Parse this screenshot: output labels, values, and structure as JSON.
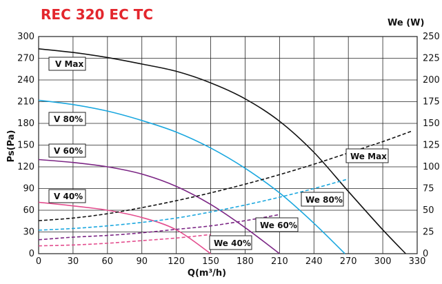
{
  "chart_data": {
    "type": "line",
    "title": "REC 320 EC TC",
    "xlabel": "Q(m³/h)",
    "ylabel": "Ps(Pa)",
    "y2label": "We (W)",
    "xlim": [
      0,
      330
    ],
    "ylim": [
      0,
      300
    ],
    "y2lim": [
      0,
      250
    ],
    "xticks": [
      "0",
      "30",
      "60",
      "90",
      "120",
      "150",
      "180",
      "210",
      "240",
      "270",
      "300",
      "330"
    ],
    "yticks": [
      "0",
      "30",
      "60",
      "90",
      "120",
      "150",
      "180",
      "210",
      "240",
      "270",
      "300"
    ],
    "y2ticks": [
      "0",
      "25",
      "50",
      "75",
      "100",
      "125",
      "150",
      "175",
      "200",
      "225",
      "250"
    ],
    "grid": true,
    "colors": {
      "max": "#111111",
      "v80": "#1aa7df",
      "v60": "#7b2584",
      "v40": "#e34d8e",
      "title": "#e3262d"
    },
    "series": [
      {
        "name": "V Max",
        "axis": "left",
        "style": "solid",
        "color": "#111111",
        "x": [
          0,
          30,
          60,
          90,
          120,
          150,
          180,
          210,
          240,
          270,
          300,
          320
        ],
        "y": [
          283,
          278,
          271,
          262,
          252,
          236,
          214,
          183,
          140,
          86,
          33,
          0
        ]
      },
      {
        "name": "V 80%",
        "axis": "left",
        "style": "solid",
        "color": "#1aa7df",
        "x": [
          0,
          30,
          60,
          90,
          120,
          150,
          180,
          210,
          240,
          267
        ],
        "y": [
          212,
          206,
          197,
          184,
          168,
          146,
          118,
          84,
          42,
          0
        ]
      },
      {
        "name": "V 60%",
        "axis": "left",
        "style": "solid",
        "color": "#7b2584",
        "x": [
          0,
          30,
          60,
          90,
          120,
          150,
          180,
          210
        ],
        "y": [
          130,
          126,
          120,
          110,
          93,
          68,
          36,
          0
        ]
      },
      {
        "name": "V 40%",
        "axis": "left",
        "style": "solid",
        "color": "#e34d8e",
        "x": [
          0,
          30,
          60,
          90,
          120,
          150
        ],
        "y": [
          71,
          66,
          60,
          50,
          33,
          0
        ]
      },
      {
        "name": "We Max",
        "axis": "right",
        "style": "dashed",
        "color": "#111111",
        "x": [
          0,
          30,
          60,
          90,
          120,
          150,
          180,
          210,
          240,
          270,
          300,
          325
        ],
        "y": [
          38,
          41,
          46,
          53,
          61,
          70,
          80,
          91,
          103,
          116,
          129,
          141
        ]
      },
      {
        "name": "We 80%",
        "axis": "right",
        "style": "dashed",
        "color": "#1aa7df",
        "x": [
          0,
          30,
          60,
          90,
          120,
          150,
          180,
          210,
          240,
          270
        ],
        "y": [
          27,
          29,
          32,
          36,
          41,
          48,
          56,
          65,
          75,
          86
        ]
      },
      {
        "name": "We 60%",
        "axis": "right",
        "style": "dashed",
        "color": "#7b2584",
        "x": [
          0,
          30,
          60,
          90,
          120,
          150,
          180,
          210
        ],
        "y": [
          16,
          19,
          21,
          24,
          28,
          32,
          38,
          45
        ]
      },
      {
        "name": "We 40%",
        "axis": "right",
        "style": "dashed",
        "color": "#e34d8e",
        "x": [
          0,
          30,
          60,
          90,
          120,
          150
        ],
        "y": [
          9,
          10,
          12,
          15,
          18,
          22
        ]
      }
    ],
    "labels": {
      "vmax": "V Max",
      "v80": "V 80%",
      "v60": "V 60%",
      "v40": "V 40%",
      "wemax": "We Max",
      "we80": "We 80%",
      "we60": "We 60%",
      "we40": "We 40%"
    }
  }
}
